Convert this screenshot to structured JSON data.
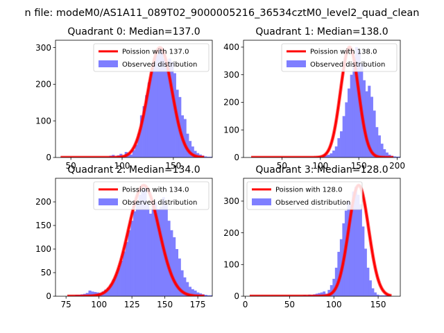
{
  "suptitle": "n file: modeM0/AS1A11_089T02_9000005216_36534cztM0_level2_quad_clean",
  "colors": {
    "bar": "#7f7fff",
    "line": "#ff0000"
  },
  "chart_data": [
    {
      "type": "bar",
      "title": "Quadrant 0: Median=137.0",
      "legend": [
        "Poission with 137.0",
        "Observed distribution"
      ],
      "legend_placement": "top-right",
      "mu": 137.0,
      "peak": 300,
      "xlim": [
        35,
        188
      ],
      "ylim": [
        0,
        320
      ],
      "xticks": [
        50,
        100,
        150
      ],
      "yticks": [
        0,
        100,
        200,
        300
      ],
      "bins": {
        "start": 40,
        "width": 2.5,
        "values": [
          2,
          2,
          2,
          2,
          2,
          2,
          2,
          2,
          2,
          2,
          2,
          2,
          2,
          2,
          2,
          2,
          2,
          2,
          2,
          5,
          7,
          3,
          6,
          10,
          4,
          15,
          12,
          8,
          20,
          35,
          65,
          115,
          140,
          170,
          205,
          235,
          260,
          280,
          295,
          300,
          270,
          250,
          270,
          260,
          230,
          185,
          165,
          115,
          105,
          65,
          45,
          30,
          18,
          12,
          8,
          5,
          3,
          2,
          2,
          2,
          2,
          2
        ]
      },
      "curve": {
        "x_start": 40,
        "x_end": 180
      }
    },
    {
      "type": "bar",
      "title": "Quadrant 1: Median=138.0",
      "legend": [
        "Poission with 138.0",
        "Observed distribution"
      ],
      "legend_placement": "top-right",
      "mu": 138.0,
      "peak": 400,
      "xlim": [
        0,
        204
      ],
      "ylim": [
        0,
        425
      ],
      "xticks": [
        50,
        100,
        150,
        200
      ],
      "yticks": [
        0,
        100,
        200,
        300,
        400
      ],
      "bins": {
        "start": 10,
        "width": 3.3,
        "values": [
          3,
          3,
          3,
          3,
          3,
          3,
          3,
          3,
          3,
          3,
          3,
          3,
          3,
          3,
          3,
          3,
          3,
          3,
          3,
          3,
          3,
          3,
          3,
          3,
          3,
          3,
          4,
          6,
          5,
          8,
          10,
          15,
          25,
          40,
          70,
          95,
          150,
          200,
          250,
          300,
          350,
          400,
          390,
          340,
          280,
          240,
          260,
          220,
          170,
          110,
          80,
          50,
          30,
          18,
          10,
          6,
          4,
          3,
          3
        ]
      },
      "curve": {
        "x_start": 10,
        "x_end": 195
      }
    },
    {
      "type": "bar",
      "title": "Quadrant 2: Median=134.0",
      "legend": [
        "Poission with 134.0",
        "Observed distribution"
      ],
      "legend_placement": "top-right",
      "mu": 134.0,
      "peak": 235,
      "xlim": [
        67,
        186
      ],
      "ylim": [
        0,
        250
      ],
      "xticks": [
        75,
        100,
        125,
        150,
        175
      ],
      "yticks": [
        0,
        50,
        100,
        150,
        200
      ],
      "bins": {
        "start": 76,
        "width": 2,
        "values": [
          2,
          2,
          2,
          3,
          3,
          4,
          5,
          7,
          12,
          10,
          9,
          8,
          7,
          10,
          14,
          18,
          25,
          35,
          45,
          60,
          75,
          95,
          115,
          140,
          160,
          180,
          200,
          215,
          225,
          230,
          195,
          175,
          195,
          200,
          185,
          190,
          210,
          195,
          160,
          140,
          125,
          100,
          80,
          55,
          40,
          30,
          20,
          15,
          12,
          8,
          6,
          4,
          3,
          2,
          2,
          2,
          2
        ]
      },
      "curve": {
        "x_start": 76,
        "x_end": 180
      }
    },
    {
      "type": "bar",
      "title": "Quadrant 3: Median=128.0",
      "legend": [
        "Poission with 128.0",
        "Observed distribution"
      ],
      "legend_placement": "top-left",
      "mu": 128.0,
      "peak": 350,
      "xlim": [
        -2,
        175
      ],
      "ylim": [
        0,
        372
      ],
      "xticks": [
        0,
        50,
        100,
        150
      ],
      "yticks": [
        0,
        100,
        200,
        300
      ],
      "bins": {
        "start": 5,
        "width": 2.75,
        "values": [
          3,
          3,
          3,
          3,
          3,
          3,
          3,
          3,
          3,
          3,
          3,
          3,
          3,
          3,
          3,
          3,
          3,
          3,
          3,
          3,
          3,
          3,
          4,
          3,
          5,
          4,
          6,
          8,
          10,
          12,
          15,
          8,
          20,
          35,
          55,
          90,
          140,
          180,
          230,
          270,
          300,
          290,
          330,
          345,
          320,
          290,
          220,
          150,
          90,
          50,
          25,
          12,
          5,
          3,
          3,
          3,
          3
        ]
      },
      "curve": {
        "x_start": 5,
        "x_end": 165
      }
    }
  ]
}
